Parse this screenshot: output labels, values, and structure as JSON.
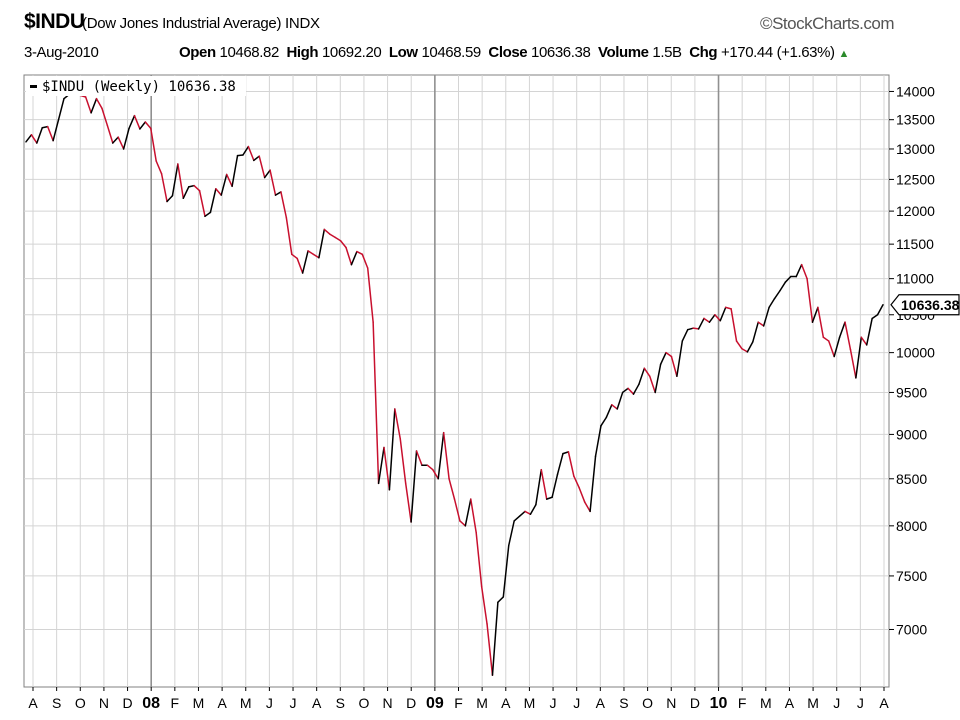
{
  "header": {
    "symbol": "$INDU",
    "description": "(Dow Jones Industrial Average)",
    "exchange": "INDX",
    "source": "©StockCharts.com",
    "date": "3-Aug-2010",
    "open_label": "Open",
    "open": "10468.82",
    "high_label": "High",
    "high": "10692.20",
    "low_label": "Low",
    "low": "10468.59",
    "close_label": "Close",
    "close": "10636.38",
    "volume_label": "Volume",
    "volume": "1.5B",
    "chg_label": "Chg",
    "chg": "+170.44 (+1.63%)"
  },
  "colors": {
    "up": "#000000",
    "down": "#c8102e",
    "grid": "#d4d4d4",
    "major_grid": "#909090"
  },
  "chart_data": {
    "type": "line",
    "title": "$INDU (Dow Jones Industrial Average) INDX",
    "legend": "$INDU (Weekly) 10636.38",
    "last_value_label": "10636.38",
    "y_scale": "log",
    "ylim": [
      6500,
      14300
    ],
    "y_ticks": [
      7000,
      7500,
      8000,
      8500,
      9000,
      9500,
      10000,
      10500,
      11000,
      11500,
      12000,
      12500,
      13000,
      13500,
      14000
    ],
    "x_labels": [
      "A",
      "S",
      "O",
      "N",
      "D",
      "08",
      "F",
      "M",
      "A",
      "M",
      "J",
      "J",
      "A",
      "S",
      "O",
      "N",
      "D",
      "09",
      "F",
      "M",
      "A",
      "M",
      "J",
      "J",
      "A",
      "S",
      "O",
      "N",
      "D",
      "10",
      "F",
      "M",
      "A",
      "M",
      "J",
      "J",
      "A"
    ],
    "x_bold_labels": [
      "08",
      "09",
      "10"
    ],
    "legend_position": "top-left",
    "grid": true,
    "values": [
      13120,
      13240,
      13100,
      13360,
      13380,
      13140,
      13500,
      13870,
      13950,
      13950,
      13930,
      13900,
      13620,
      13870,
      13700,
      13400,
      13100,
      13200,
      13000,
      13350,
      13570,
      13340,
      13460,
      13350,
      12800,
      12590,
      12150,
      12240,
      12750,
      12200,
      12380,
      12400,
      12320,
      11920,
      11980,
      12350,
      12250,
      12580,
      12390,
      12890,
      12900,
      13040,
      12810,
      12880,
      12530,
      12650,
      12250,
      12300,
      11900,
      11350,
      11290,
      11080,
      11400,
      11350,
      11300,
      11720,
      11650,
      11600,
      11550,
      11450,
      11200,
      11390,
      11350,
      11150,
      10400,
      8450,
      8850,
      8380,
      9300,
      8950,
      8450,
      8040,
      8810,
      8650,
      8650,
      8600,
      8500,
      9020,
      8500,
      8280,
      8050,
      8000,
      8280,
      7930,
      7400,
      7050,
      6600,
      7250,
      7300,
      7800,
      8050,
      8100,
      8150,
      8120,
      8220,
      8600,
      8280,
      8300,
      8550,
      8780,
      8800,
      8530,
      8400,
      8250,
      8150,
      8750,
      9100,
      9200,
      9350,
      9300,
      9500,
      9550,
      9480,
      9600,
      9800,
      9700,
      9500,
      9850,
      10000,
      9950,
      9700,
      10150,
      10300,
      10320,
      10310,
      10450,
      10400,
      10500,
      10420,
      10600,
      10580,
      10150,
      10050,
      10010,
      10140,
      10400,
      10350,
      10600,
      10720,
      10830,
      10950,
      11030,
      11030,
      11200,
      11000,
      10400,
      10600,
      10200,
      10150,
      9950,
      10200,
      10400,
      10040,
      9680,
      10200,
      10100,
      10450,
      10500,
      10636
    ]
  }
}
